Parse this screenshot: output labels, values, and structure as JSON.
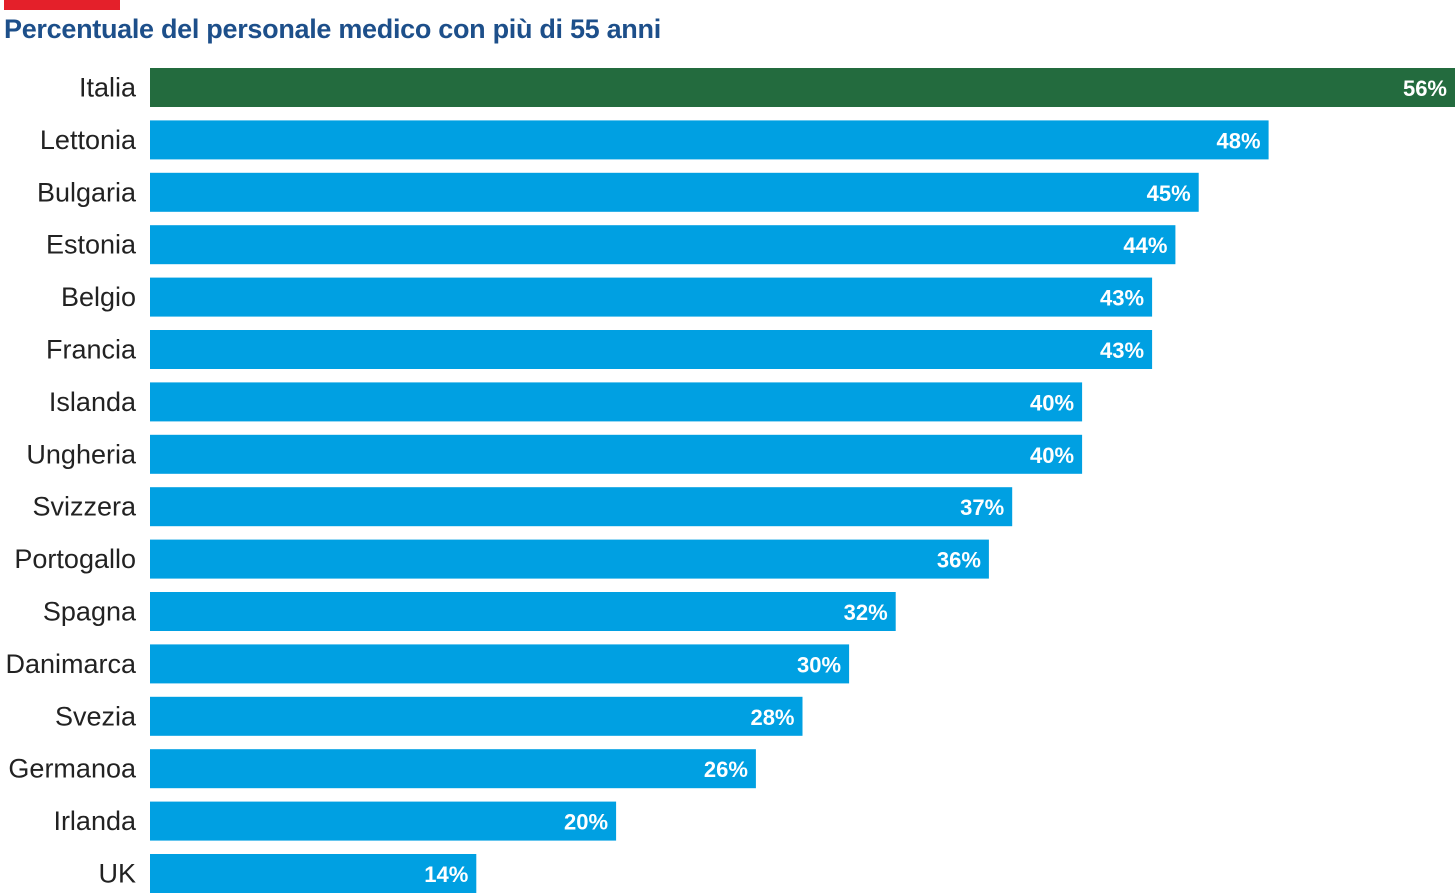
{
  "chart_data": {
    "type": "bar",
    "orientation": "horizontal",
    "title": "Percentuale del personale medico con più di 55 anni",
    "categories": [
      "Italia",
      "Lettonia",
      "Bulgaria",
      "Estonia",
      "Belgio",
      "Francia",
      "Islanda",
      "Ungheria",
      "Svizzera",
      "Portogallo",
      "Spagna",
      "Danimarca",
      "Svezia",
      "Germanoa",
      "Irlanda",
      "UK"
    ],
    "values": [
      56,
      48,
      45,
      44,
      43,
      43,
      40,
      40,
      37,
      36,
      32,
      30,
      28,
      26,
      20,
      14
    ],
    "value_labels": [
      "56%",
      "48%",
      "45%",
      "44%",
      "43%",
      "43%",
      "40%",
      "40%",
      "37%",
      "36%",
      "32%",
      "30%",
      "28%",
      "26%",
      "20%",
      "14%"
    ],
    "xlim": [
      0,
      56
    ],
    "grid": false,
    "highlight_category": "Italia",
    "colors": {
      "highlight": "#236b3e",
      "default": "#00a0e2",
      "title": "#1d4f8a",
      "accent": "#e4202a",
      "category_label": "#222222",
      "value_label": "#ffffff"
    }
  }
}
